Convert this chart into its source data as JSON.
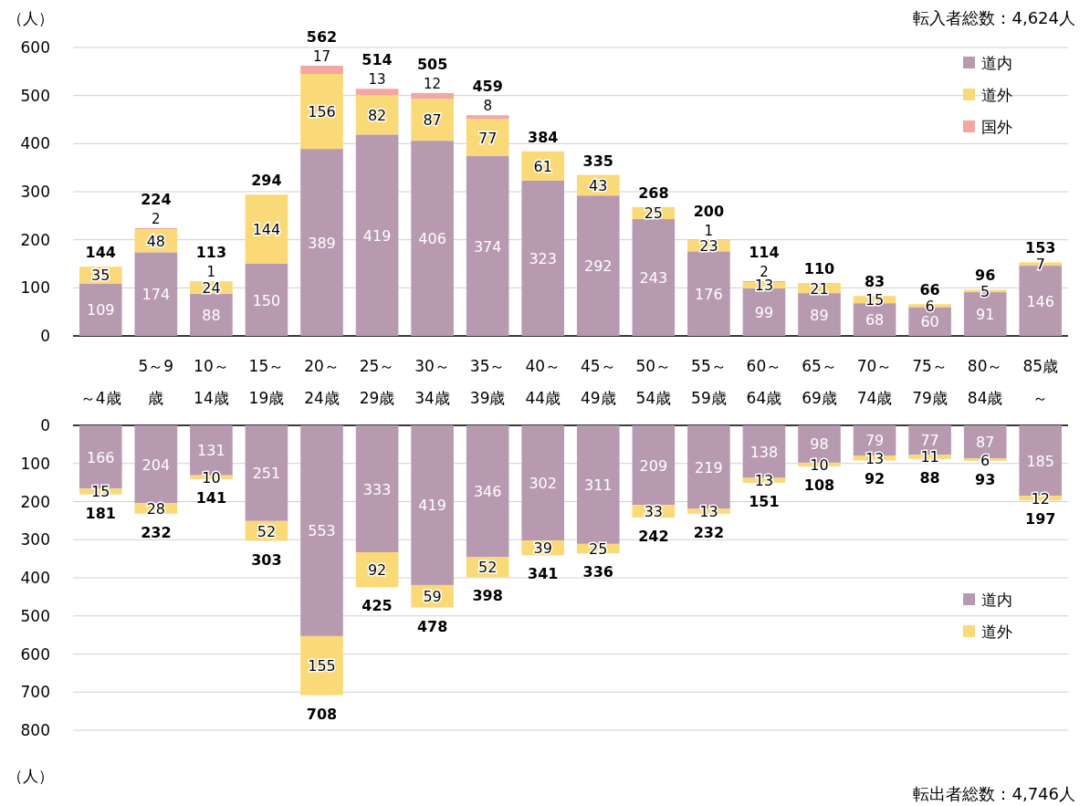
{
  "chart_data": [
    {
      "type": "bar",
      "stacked": true,
      "ylabel": "（人）",
      "annotations": [
        "転入者総数：4,624人"
      ],
      "categories": [
        "～4歳",
        "5～9歳",
        "10～14歳",
        "15～19歳",
        "20～24歳",
        "25～29歳",
        "30～34歳",
        "35～39歳",
        "40～44歳",
        "45～49歳",
        "50～54歳",
        "55～59歳",
        "60～64歳",
        "65～69歳",
        "70～74歳",
        "75～79歳",
        "80～84歳",
        "85歳～"
      ],
      "series": [
        {
          "name": "道内",
          "color": "#b89ab0",
          "values": [
            109,
            174,
            88,
            150,
            389,
            419,
            406,
            374,
            323,
            292,
            243,
            176,
            99,
            89,
            68,
            60,
            91,
            146
          ]
        },
        {
          "name": "道外",
          "color": "#fad978",
          "values": [
            35,
            48,
            24,
            144,
            156,
            82,
            87,
            77,
            61,
            43,
            25,
            23,
            13,
            21,
            15,
            6,
            5,
            7
          ]
        },
        {
          "name": "国外",
          "color": "#f4a6a0",
          "values": [
            null,
            2,
            1,
            null,
            17,
            13,
            12,
            8,
            null,
            null,
            null,
            1,
            2,
            null,
            null,
            null,
            null,
            null
          ]
        }
      ],
      "totals": [
        "144",
        "224",
        "113",
        "294",
        "562",
        "514",
        "505",
        "459",
        "384",
        "335",
        "268",
        "200",
        "114",
        "110",
        "83",
        "66",
        "96",
        "153"
      ],
      "data_labels": true,
      "ylim": [
        0,
        600
      ],
      "yticks": [
        0,
        100,
        200,
        300,
        400,
        500,
        600
      ],
      "grid": "y",
      "legend": "top right"
    },
    {
      "type": "bar",
      "stacked": true,
      "ylabel": "（人）",
      "annotations": [
        "転出者総数：4,746人"
      ],
      "categories": [
        "～4歳",
        "5～9歳",
        "10～14歳",
        "15～19歳",
        "20～24歳",
        "25～29歳",
        "30～34歳",
        "35～39歳",
        "40～44歳",
        "45～49歳",
        "50～54歳",
        "55～59歳",
        "60～64歳",
        "65～69歳",
        "70～74歳",
        "75～79歳",
        "80～84歳",
        "85歳～"
      ],
      "series": [
        {
          "name": "道内",
          "color": "#b89ab0",
          "values": [
            166,
            204,
            131,
            251,
            553,
            333,
            419,
            346,
            302,
            311,
            209,
            219,
            138,
            98,
            79,
            77,
            87,
            185
          ]
        },
        {
          "name": "道外",
          "color": "#fad978",
          "values": [
            15,
            28,
            10,
            52,
            155,
            92,
            59,
            52,
            39,
            25,
            33,
            13,
            13,
            10,
            13,
            11,
            6,
            12
          ]
        }
      ],
      "totals": [
        "181",
        "232",
        "141",
        "303",
        "708",
        "425",
        "478",
        "398",
        "341",
        "336",
        "242",
        "232",
        "151",
        "108",
        "92",
        "88",
        "93",
        "197"
      ],
      "data_labels": true,
      "ylim": [
        800,
        0
      ],
      "yticks": [
        0,
        100,
        200,
        300,
        400,
        500,
        600,
        700,
        800
      ],
      "grid": "y",
      "legend": "bottom right",
      "tick_labels": "y"
    }
  ]
}
